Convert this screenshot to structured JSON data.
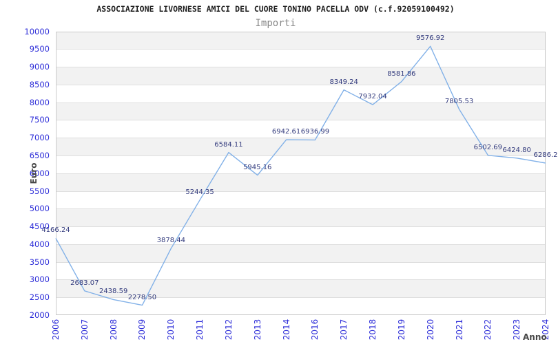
{
  "header": {
    "title": "ASSOCIAZIONE LIVORNESE AMICI DEL CUORE TONINO PACELLA ODV (c.f.92059100492)",
    "subtitle": "Importi"
  },
  "chart_data": {
    "type": "line",
    "title": "ASSOCIAZIONE LIVORNESE AMICI DEL CUORE TONINO PACELLA ODV (c.f.92059100492)",
    "subtitle": "Importi",
    "xlabel": "Anno",
    "ylabel": "Euro",
    "categories": [
      "2006",
      "2007",
      "2008",
      "2009",
      "2010",
      "2011",
      "2012",
      "2013",
      "2014",
      "2016",
      "2017",
      "2018",
      "2019",
      "2020",
      "2021",
      "2022",
      "2023",
      "2024"
    ],
    "values": [
      4166.24,
      2683.07,
      2438.59,
      2278.5,
      3878.44,
      5244.35,
      6584.11,
      5945.16,
      6942.61,
      6936.99,
      8349.24,
      7932.04,
      8581.86,
      9576.92,
      7805.53,
      6502.69,
      6424.8,
      6286.2
    ],
    "point_labels": [
      "4166.24",
      "2683.07",
      "2438.59",
      "2278.50",
      "3878.44",
      "5244.35",
      "6584.11",
      "5945.16",
      "6942.61",
      "6936.99",
      "8349.24",
      "7932.04",
      "8581.86",
      "9576.92",
      "7805.53",
      "6502.69",
      "6424.80",
      "6286.2"
    ],
    "ylim": [
      2000,
      10000
    ],
    "ytick_step": 500,
    "grid": "alternating-horizontal-bands",
    "legend_position": "none"
  },
  "colors": {
    "series_line": "#82b1e8",
    "tick_label": "#2c2cd8",
    "point_label": "#333b7d",
    "band_gray": "#f2f2f2",
    "band_white": "#ffffff",
    "grid_line": "#dedede",
    "plot_border": "#c9c9c9",
    "title": "#1f1f1f",
    "subtitle": "#878787",
    "axis_title": "#474747"
  }
}
